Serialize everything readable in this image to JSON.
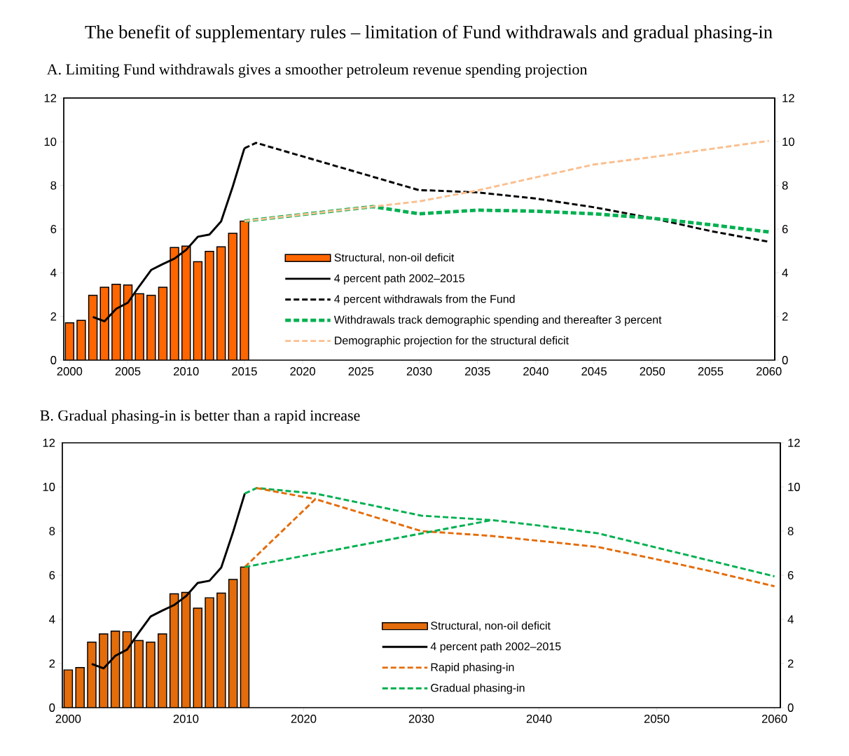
{
  "chart_data": [
    {
      "type": "bar",
      "title": "The benefit of supplementary rules – limitation of Fund withdrawals and gradual phasing-in",
      "subtitle": "A. Limiting Fund withdrawals gives a smoother petroleum revenue spending projection",
      "xlim": [
        1999.5,
        2060.5
      ],
      "xticks": [
        2000,
        2005,
        2010,
        2015,
        2020,
        2025,
        2030,
        2035,
        2040,
        2045,
        2050,
        2055,
        2060
      ],
      "ylim": [
        0,
        12
      ],
      "yticks": [
        0,
        2,
        4,
        6,
        8,
        10,
        12
      ],
      "y2lim": [
        0,
        12
      ],
      "y2ticks": [
        0,
        2,
        4,
        6,
        8,
        10,
        12
      ],
      "legend": "bottom",
      "series": [
        {
          "name": "Structural, non-oil deficit",
          "color": "#ff6600",
          "x": [
            2000,
            2001,
            2002,
            2003,
            2004,
            2005,
            2006,
            2007,
            2008,
            2009,
            2010,
            2011,
            2012,
            2013,
            2014,
            2015
          ],
          "values": [
            1.71,
            1.82,
            2.97,
            3.34,
            3.47,
            3.44,
            3.04,
            2.97,
            3.34,
            5.16,
            5.22,
            4.51,
            4.98,
            5.19,
            5.81,
            6.37
          ]
        },
        {
          "name": "4 percent path 2002–2015",
          "type": "line",
          "line_style": "solid",
          "color": "#000000",
          "x": [
            2002,
            2003,
            2004,
            2005,
            2006,
            2007,
            2008,
            2009,
            2010,
            2011,
            2012,
            2013,
            2014,
            2015
          ],
          "values": [
            1.98,
            1.78,
            2.35,
            2.63,
            3.4,
            4.13,
            4.4,
            4.65,
            5.05,
            5.65,
            5.75,
            6.35,
            7.95,
            9.7
          ]
        },
        {
          "name": "4 percent withdrawals from the Fund",
          "type": "line",
          "line_style": "dashed",
          "color": "#000000",
          "x": [
            2015,
            2016,
            2030,
            2031,
            2035,
            2040,
            2045,
            2050,
            2055,
            2060
          ],
          "values": [
            9.7,
            9.95,
            7.78,
            7.77,
            7.68,
            7.4,
            7.0,
            6.5,
            5.91,
            5.42
          ]
        },
        {
          "name": "Withdrawals track demographic spending and thereafter 3 percent",
          "type": "line",
          "line_style": "dashed",
          "color": "#00b050",
          "x": [
            2015,
            2026,
            2030,
            2035,
            2040,
            2045,
            2050,
            2055,
            2060
          ],
          "values": [
            6.37,
            7.03,
            6.7,
            6.87,
            6.82,
            6.7,
            6.5,
            6.2,
            5.87
          ]
        },
        {
          "name": "Demographic projection for the structural deficit",
          "type": "line",
          "line_style": "dashed",
          "color": "#fabf8f",
          "x": [
            2015,
            2026,
            2030,
            2035,
            2040,
            2045,
            2050,
            2055,
            2060
          ],
          "values": [
            6.37,
            7.03,
            7.27,
            7.77,
            8.37,
            8.96,
            9.3,
            9.67,
            10.04
          ]
        }
      ]
    },
    {
      "type": "bar",
      "title": "B. Gradual phasing-in is better than a rapid increase",
      "xlim": [
        1999.5,
        2060.5
      ],
      "xticks": [
        2000,
        2010,
        2020,
        2030,
        2040,
        2050,
        2060
      ],
      "ylim": [
        0,
        12
      ],
      "yticks": [
        0,
        2,
        4,
        6,
        8,
        10,
        12
      ],
      "y2lim": [
        0,
        12
      ],
      "y2ticks": [
        0,
        2,
        4,
        6,
        8,
        10,
        12
      ],
      "legend": "bottom",
      "series": [
        {
          "name": "Structural, non-oil deficit",
          "color": "#e46c0a",
          "x": [
            2000,
            2001,
            2002,
            2003,
            2004,
            2005,
            2006,
            2007,
            2008,
            2009,
            2010,
            2011,
            2012,
            2013,
            2014,
            2015
          ],
          "values": [
            1.71,
            1.82,
            2.97,
            3.34,
            3.47,
            3.44,
            3.04,
            2.97,
            3.34,
            5.16,
            5.22,
            4.51,
            4.98,
            5.19,
            5.81,
            6.37
          ]
        },
        {
          "name": "4 percent path 2002–2015",
          "type": "line",
          "line_style": "solid",
          "color": "#000000",
          "x": [
            2002,
            2003,
            2004,
            2005,
            2006,
            2007,
            2008,
            2009,
            2010,
            2011,
            2012,
            2013,
            2014,
            2015
          ],
          "values": [
            1.98,
            1.78,
            2.35,
            2.63,
            3.4,
            4.13,
            4.4,
            4.65,
            5.05,
            5.65,
            5.75,
            6.35,
            7.95,
            9.7
          ]
        },
        {
          "name": "Rapid phasing-in",
          "type": "line",
          "line_style": "dashed",
          "color": "#e46c0a",
          "x": [
            2015,
            2021,
            2030,
            2036,
            2045,
            2050,
            2055,
            2060
          ],
          "values": [
            6.37,
            9.45,
            8.0,
            7.78,
            7.28,
            6.72,
            6.13,
            5.5
          ]
        },
        {
          "name": "Gradual phasing-in",
          "type": "line",
          "line_style": "dashed",
          "color": "#00b050",
          "x": [
            2015,
            2016,
            2021,
            2030,
            2036,
            2040,
            2045,
            2050,
            2055,
            2060
          ],
          "values": [
            9.7,
            9.95,
            9.7,
            8.7,
            8.5,
            8.25,
            7.9,
            7.25,
            6.6,
            5.95
          ]
        },
        {
          "type": "line",
          "line_style": "dashed",
          "color": "#00b050",
          "x": [
            2015,
            2036
          ],
          "values": [
            6.37,
            8.5
          ]
        },
        {
          "type": "line",
          "line_style": "dashed",
          "color": "#e46c0a",
          "x": [
            2016,
            2021
          ],
          "values": [
            9.95,
            9.45
          ]
        }
      ]
    }
  ]
}
